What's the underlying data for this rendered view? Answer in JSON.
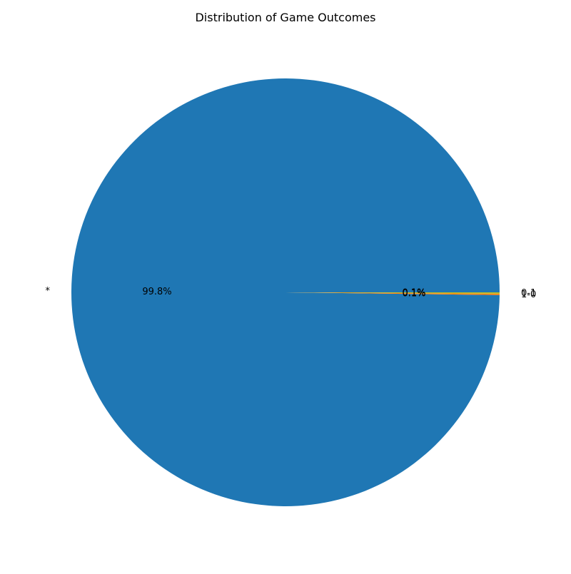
{
  "chart_data": {
    "type": "pie",
    "title": "Distribution of Game Outcomes",
    "slices": [
      {
        "label": "*",
        "value": 99.8,
        "pct_label": "99.8%",
        "color": "#1f77b4"
      },
      {
        "label": "1-0",
        "value": 0.1,
        "pct_label": "0.1%",
        "color": "#ff7f0e"
      },
      {
        "label": "0-1",
        "value": 0.1,
        "pct_label": "0.1%",
        "color": "#bcbd22"
      }
    ],
    "start_angle_deg": 0,
    "direction": "counterclockwise",
    "legend": "none"
  }
}
